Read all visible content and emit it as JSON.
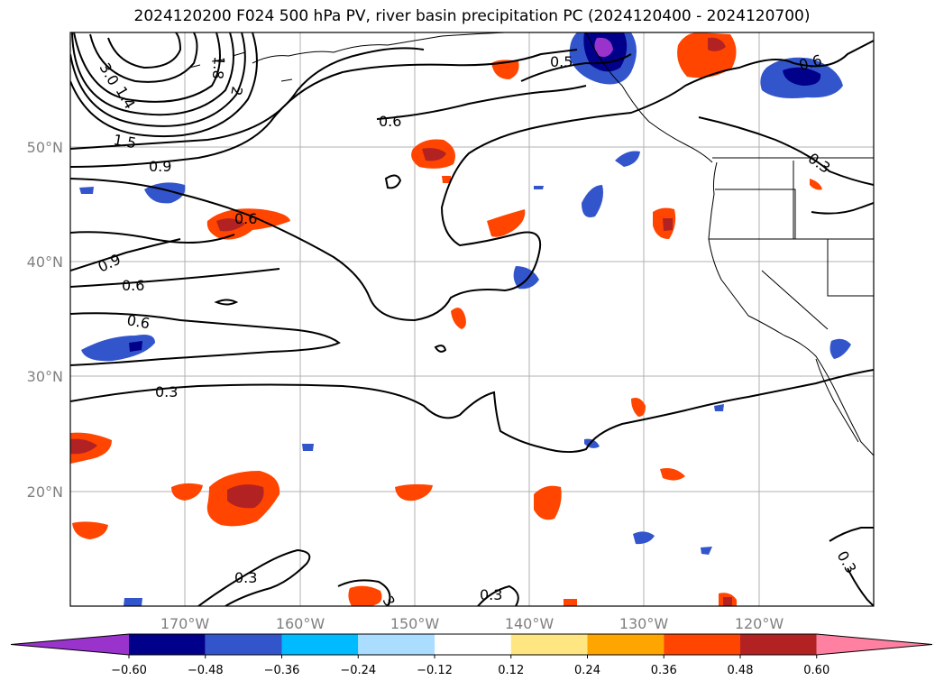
{
  "title": "2024120200 F024 500 hPa PV, river basin precipitation PC (2024120400 - 2024120700)",
  "map": {
    "lat_labels": [
      "50°N",
      "40°N",
      "30°N",
      "20°N"
    ],
    "lon_labels": [
      "170°W",
      "160°W",
      "150°W",
      "140°W",
      "130°W",
      "120°W"
    ],
    "contour_labels": [
      "3.0",
      "1.4",
      "1.8",
      "2",
      "1.5",
      "0.9",
      "0.6",
      "0.9",
      "0.6",
      "0.6",
      "0.6",
      "0.3",
      "0.3",
      "0.3",
      "0.5",
      "0.6",
      "0.3",
      "0.3",
      "3"
    ],
    "grid": true
  },
  "colorbar": {
    "ticks": [
      "−0.60",
      "−0.48",
      "−0.36",
      "−0.24",
      "−0.12",
      "0.12",
      "0.24",
      "0.36",
      "0.48",
      "0.60"
    ],
    "colors": [
      "#9933cc",
      "#00008b",
      "#3355cc",
      "#00bbff",
      "#aaddff",
      "#ffffff",
      "#ffe680",
      "#ffa500",
      "#ff4500",
      "#b22222",
      "#ff80a0"
    ]
  }
}
